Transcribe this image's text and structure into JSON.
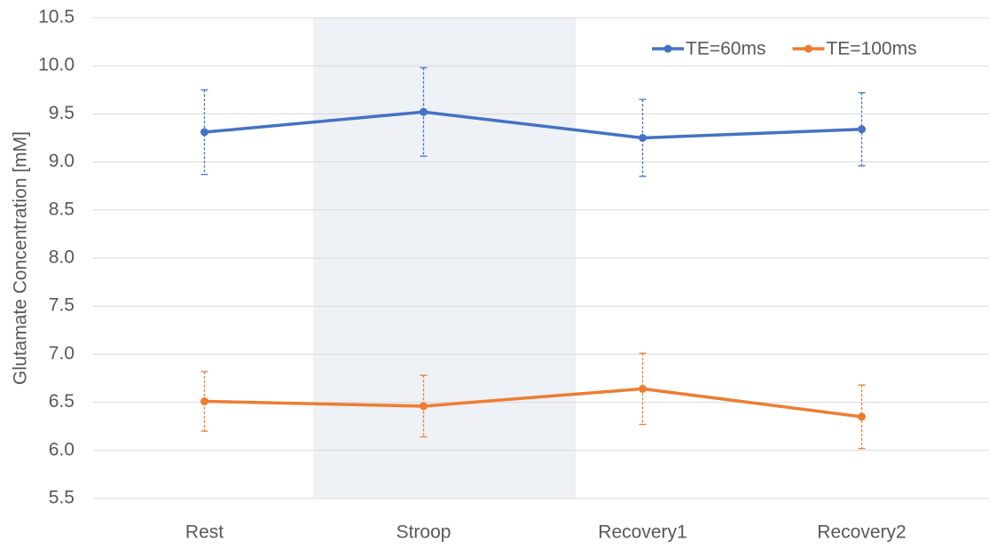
{
  "chart_data": {
    "type": "line",
    "y_label": "Glutamate Concentration [mM]",
    "categories": [
      "Rest",
      "Stroop",
      "Recovery1",
      "Recovery2"
    ],
    "series": [
      {
        "name": "TE=60ms",
        "color": "#4472c4",
        "values": [
          9.31,
          9.52,
          9.25,
          9.34
        ],
        "errors": [
          0.44,
          0.46,
          0.4,
          0.38
        ]
      },
      {
        "name": "TE=100ms",
        "color": "#ed7d31",
        "values": [
          6.51,
          6.46,
          6.64,
          6.35
        ],
        "errors": [
          0.31,
          0.32,
          0.37,
          0.33
        ]
      }
    ],
    "ylim": [
      5.5,
      10.5
    ],
    "yticks": [
      5.5,
      {
        "value": 6,
        "label": "6.0"
      },
      6.5,
      {
        "value": 7,
        "label": "7.0"
      },
      7.5,
      {
        "value": 8,
        "label": "8.0"
      },
      8.5,
      {
        "value": 9,
        "label": "9.0"
      },
      9.5,
      {
        "value": 10,
        "label": "10.0"
      },
      10.5
    ],
    "grid": true,
    "legend": "top-right"
  }
}
